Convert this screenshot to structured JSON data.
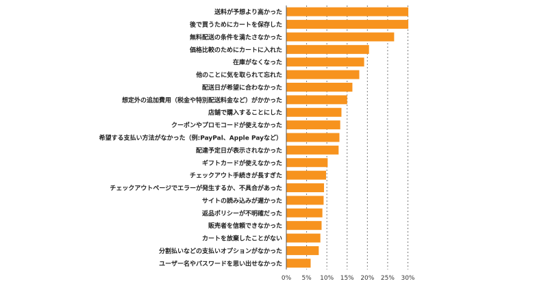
{
  "chart_data": {
    "type": "bar",
    "orientation": "horizontal",
    "title": "",
    "xlabel": "",
    "ylabel": "",
    "xlim": [
      0,
      30
    ],
    "x_ticks": [
      "0%",
      "5%",
      "10%",
      "15%",
      "20%",
      "25%",
      "30%"
    ],
    "grid": "vertical dashed",
    "bar_color": "#F7931E",
    "categories": [
      "送料が予想より高かった",
      "後で買うためにカートを保存した",
      "無料配送の条件を満たさなかった",
      "価格比較のためにカートに入れた",
      "在庫がなくなった",
      "他のことに気を取られて忘れた",
      "配送日が希望に合わなかった",
      "想定外の追加費用（税金や特別配送料金など）がかかった",
      "店舗で購入することにした",
      "クーポンやプロモコードが使えなかった",
      "希望する支払い方法がなかった（例:PayPal、Apple Payなど）",
      "配達予定日が表示されなかった",
      "ギフトカードが使えなかった",
      "チェックアウト手続きが長すぎた",
      "チェックアウトページでエラーが発生するか、不具合があった",
      "サイトの読み込みが遅かった",
      "返品ポリシーが不明確だった",
      "販売者を信頼できなかった",
      "カートを放棄したことがない",
      "分割払いなどの支払いオプションがなかった",
      "ユーザー名やパスワードを思い出せなかった"
    ],
    "values": [
      30.1,
      30.1,
      26.6,
      20.4,
      19.2,
      18.0,
      16.3,
      15.0,
      13.6,
      13.3,
      13.1,
      12.9,
      10.2,
      9.8,
      9.3,
      9.2,
      8.9,
      8.7,
      8.4,
      8.0,
      6.0
    ]
  }
}
